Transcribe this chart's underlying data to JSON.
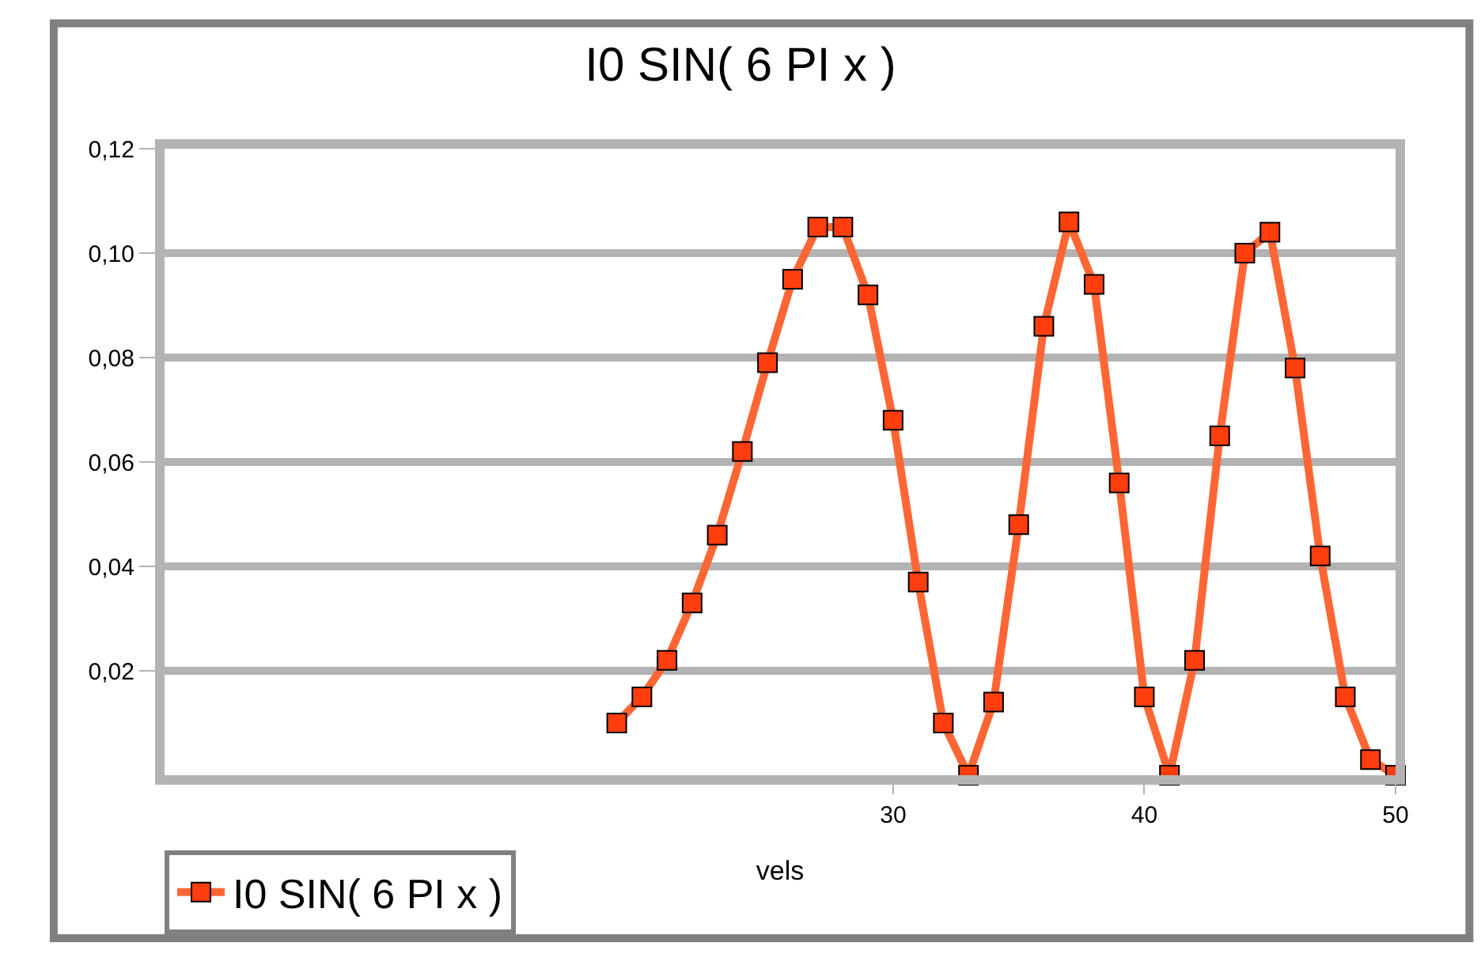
{
  "chart_data": {
    "type": "line",
    "title": "I0 SIN( 6 PI x )",
    "xlabel": "vels",
    "x": [
      19,
      20,
      21,
      22,
      23,
      24,
      25,
      26,
      27,
      28,
      29,
      30,
      31,
      32,
      33,
      34,
      35,
      36,
      37,
      38,
      39,
      40,
      41,
      42,
      43,
      44,
      45,
      46,
      47,
      48,
      49,
      50
    ],
    "series": [
      {
        "name": "I0 SIN( 6 PI x )",
        "color": "#ff6633",
        "values": [
          0.01,
          0.015,
          0.022,
          0.033,
          0.046,
          0.062,
          0.079,
          0.095,
          0.105,
          0.105,
          0.092,
          0.068,
          0.037,
          0.01,
          0.0,
          0.014,
          0.048,
          0.086,
          0.106,
          0.094,
          0.056,
          0.015,
          0.0,
          0.022,
          0.065,
          0.1,
          0.104,
          0.078,
          0.042,
          0.015,
          0.003,
          0.0
        ]
      }
    ],
    "xlim": [
      1,
      50
    ],
    "xticks": [
      30,
      40,
      50
    ],
    "ylim": [
      0,
      0.12
    ],
    "yticks": [
      {
        "value": 0.02,
        "label": "0,02"
      },
      {
        "value": 0.04,
        "label": "0,04"
      },
      {
        "value": 0.06,
        "label": "0,06"
      },
      {
        "value": 0.08,
        "label": "0,08"
      },
      {
        "value": 0.1,
        "label": "0,10"
      },
      {
        "value": 0.12,
        "label": "0,12"
      }
    ],
    "grid": "y",
    "legend": "bottom left",
    "marker": "square",
    "line_style": "solid"
  }
}
